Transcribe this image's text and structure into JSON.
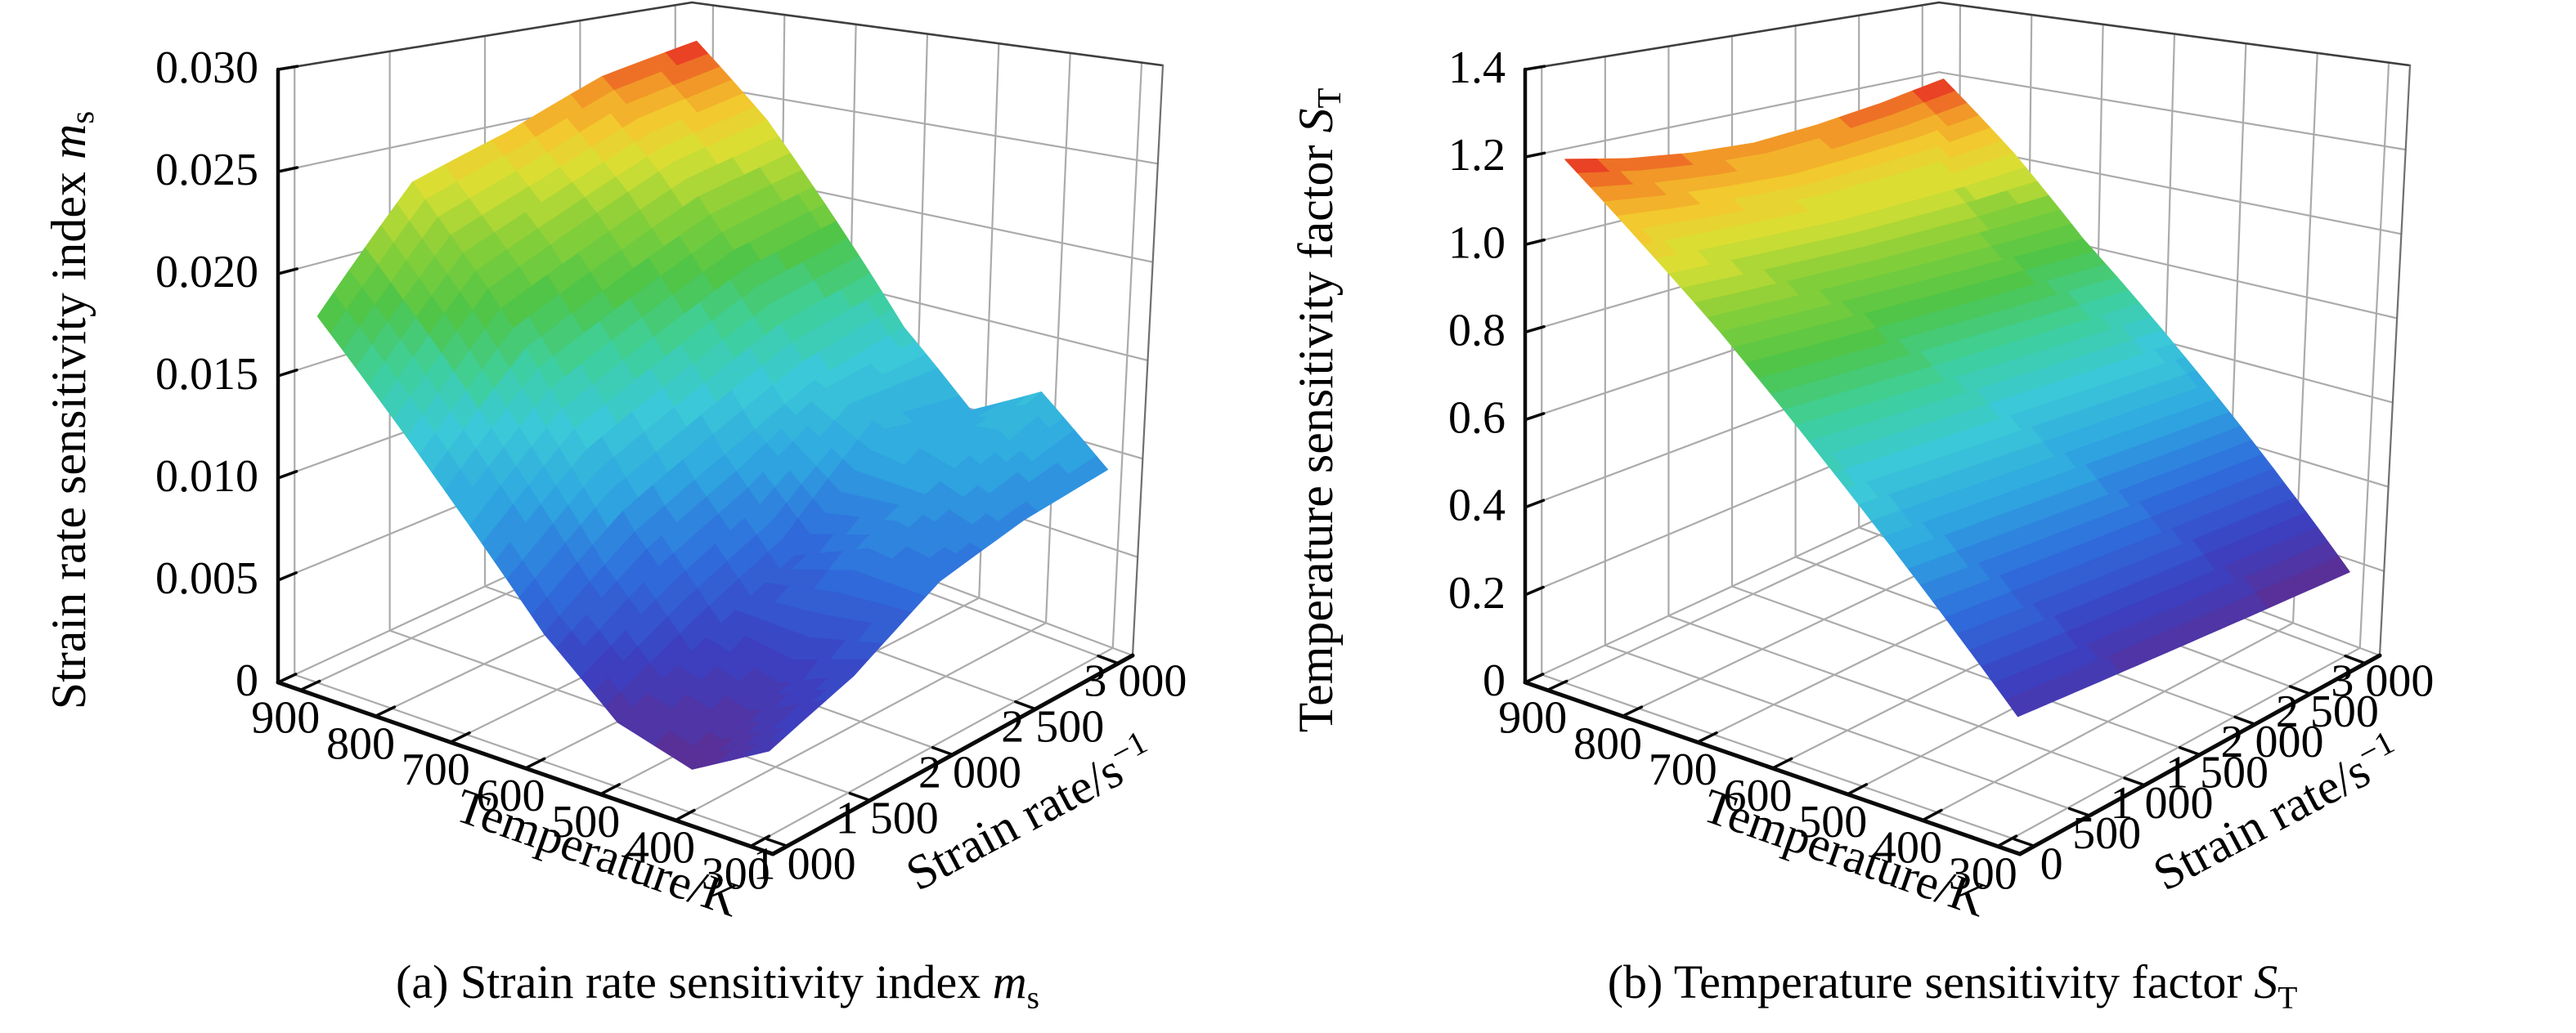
{
  "figure": {
    "background": "#ffffff",
    "grid_color": "#ababab",
    "box_edge_color": "#3f3f3f",
    "axis_color": "#0a0a0a"
  },
  "colormap": {
    "name": "rainbow",
    "bands": 36,
    "stops": [
      [
        0.0,
        "#5c2d91"
      ],
      [
        0.1,
        "#3c3fc0"
      ],
      [
        0.22,
        "#2f6edd"
      ],
      [
        0.33,
        "#2fa7e0"
      ],
      [
        0.43,
        "#3bc8d8"
      ],
      [
        0.53,
        "#3fcf9a"
      ],
      [
        0.62,
        "#4ec448"
      ],
      [
        0.73,
        "#8ed038"
      ],
      [
        0.81,
        "#d8e034"
      ],
      [
        0.88,
        "#f4c72e"
      ],
      [
        0.94,
        "#f18f27"
      ],
      [
        1.0,
        "#e72b25"
      ]
    ]
  },
  "chart_data": [
    {
      "type": "surface3d",
      "panel": "a",
      "caption_parts": [
        {
          "t": "(a) Strain rate sensitivity index "
        },
        {
          "t": "m",
          "italic": true
        },
        {
          "t": "s",
          "sub": true
        }
      ],
      "axes": {
        "temperature": {
          "title": "Temperature/K",
          "tick_labels": [
            "900",
            "800",
            "700",
            "600",
            "500",
            "400",
            "300"
          ],
          "tick_values": [
            900,
            800,
            700,
            600,
            500,
            400,
            300
          ]
        },
        "strain_rate": {
          "title_parts": [
            {
              "t": "Strain rate/s"
            },
            {
              "t": "−1",
              "sup": true
            }
          ],
          "tick_labels": [
            "1 000",
            "1 500",
            "2 000",
            "2 500",
            "3 000"
          ],
          "tick_values": [
            1000,
            1500,
            2000,
            2500,
            3000
          ]
        },
        "z": {
          "title_parts": [
            {
              "t": "Strain rate sensitivity index "
            },
            {
              "t": "m",
              "italic": true
            },
            {
              "t": "s",
              "sub": true
            }
          ],
          "tick_labels": [
            "0",
            "0.005",
            "0.010",
            "0.015",
            "0.020",
            "0.025",
            "0.030"
          ],
          "tick_values": [
            0,
            0.005,
            0.01,
            0.015,
            0.02,
            0.025,
            0.03
          ],
          "max": 0.03
        }
      },
      "surface": {
        "temperatures_K": [
          300,
          400,
          500,
          600,
          700,
          800,
          900
        ],
        "strain_rates_s-1": [
          1000,
          1500,
          2000,
          2500,
          3000
        ],
        "values_ms": [
          [
            0.004,
            0.0055,
            0.008,
            0.009,
            0.0095
          ],
          [
            0.002,
            0.004,
            0.0085,
            0.0105,
            0.0125
          ],
          [
            0.003,
            0.005,
            0.007,
            0.0115,
            0.0105
          ],
          [
            0.006,
            0.009,
            0.011,
            0.013,
            0.014
          ],
          [
            0.01,
            0.014,
            0.016,
            0.018,
            0.019
          ],
          [
            0.014,
            0.019,
            0.021,
            0.023,
            0.024
          ],
          [
            0.018,
            0.0235,
            0.025,
            0.027,
            0.028
          ]
        ]
      }
    },
    {
      "type": "surface3d",
      "panel": "b",
      "caption_parts": [
        {
          "t": "(b) Temperature sensitivity factor "
        },
        {
          "t": "S",
          "italic": true
        },
        {
          "t": "T",
          "sub": true
        }
      ],
      "axes": {
        "temperature": {
          "title": "Temperature/K",
          "tick_labels": [
            "900",
            "800",
            "700",
            "600",
            "500",
            "400",
            "300"
          ],
          "tick_values": [
            900,
            800,
            700,
            600,
            500,
            400,
            300
          ]
        },
        "strain_rate": {
          "title_parts": [
            {
              "t": "Strain rate/s"
            },
            {
              "t": "−1",
              "sup": true
            }
          ],
          "tick_labels": [
            "0",
            "500",
            "1 000",
            "1 500",
            "2 000",
            "2 500",
            "3 000"
          ],
          "tick_values": [
            0,
            500,
            1000,
            1500,
            2000,
            2500,
            3000
          ]
        },
        "z": {
          "title_parts": [
            {
              "t": "Temperature sensitivity factor "
            },
            {
              "t": "S",
              "italic": true
            },
            {
              "t": "T",
              "sub": true
            }
          ],
          "tick_labels": [
            "0",
            "0.2",
            "0.4",
            "0.6",
            "0.8",
            "1.0",
            "1.2",
            "1.4"
          ],
          "tick_values": [
            0,
            0.2,
            0.4,
            0.6,
            0.8,
            1.0,
            1.2,
            1.4
          ],
          "max": 1.4
        }
      },
      "surface": {
        "temperatures_K": [
          300,
          400,
          500,
          600,
          700,
          800,
          900
        ],
        "strain_rates_s-1": [
          0,
          500,
          1000,
          1500,
          2000,
          2500,
          3000
        ],
        "values_ST": [
          [
            0.26,
            0.25,
            0.24,
            0.23,
            0.22,
            0.21,
            0.2
          ],
          [
            0.42,
            0.41,
            0.4,
            0.39,
            0.38,
            0.37,
            0.36
          ],
          [
            0.58,
            0.57,
            0.56,
            0.55,
            0.54,
            0.53,
            0.52
          ],
          [
            0.74,
            0.73,
            0.72,
            0.71,
            0.7,
            0.69,
            0.68
          ],
          [
            0.9,
            0.89,
            0.88,
            0.87,
            0.86,
            0.85,
            0.84
          ],
          [
            1.05,
            1.04,
            1.03,
            1.02,
            1.02,
            1.02,
            1.03
          ],
          [
            1.2,
            1.17,
            1.15,
            1.14,
            1.15,
            1.17,
            1.2
          ]
        ]
      }
    }
  ]
}
